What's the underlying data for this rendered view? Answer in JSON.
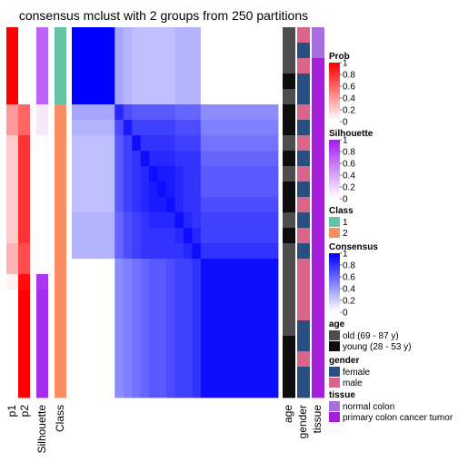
{
  "chart_data": {
    "type": "heatmap",
    "title": "consensus mclust with 2 groups from 250 partitions",
    "n_samples": 24,
    "consensus_row_blocks": [
      5,
      1,
      1,
      1,
      1,
      1,
      1,
      1,
      1,
      1,
      1,
      9
    ],
    "consensus_matrix": [
      [
        1.0,
        0.35,
        0.3,
        0.25,
        0.25,
        0.25,
        0.25,
        0.25,
        0.3,
        0.3,
        0.3,
        0.0
      ],
      [
        0.35,
        0.85,
        0.7,
        0.65,
        0.65,
        0.65,
        0.65,
        0.65,
        0.6,
        0.6,
        0.6,
        0.45
      ],
      [
        0.3,
        0.7,
        0.9,
        0.75,
        0.75,
        0.75,
        0.75,
        0.75,
        0.7,
        0.7,
        0.7,
        0.5
      ],
      [
        0.25,
        0.65,
        0.75,
        0.95,
        0.8,
        0.8,
        0.8,
        0.8,
        0.75,
        0.75,
        0.75,
        0.55
      ],
      [
        0.25,
        0.65,
        0.75,
        0.8,
        0.95,
        0.85,
        0.85,
        0.85,
        0.8,
        0.8,
        0.8,
        0.6
      ],
      [
        0.25,
        0.65,
        0.75,
        0.8,
        0.85,
        0.95,
        0.9,
        0.9,
        0.85,
        0.8,
        0.8,
        0.65
      ],
      [
        0.25,
        0.65,
        0.75,
        0.8,
        0.85,
        0.9,
        0.95,
        0.9,
        0.85,
        0.8,
        0.8,
        0.65
      ],
      [
        0.25,
        0.65,
        0.75,
        0.8,
        0.85,
        0.9,
        0.9,
        0.95,
        0.85,
        0.8,
        0.8,
        0.7
      ],
      [
        0.3,
        0.6,
        0.7,
        0.75,
        0.8,
        0.85,
        0.85,
        0.85,
        0.95,
        0.85,
        0.8,
        0.75
      ],
      [
        0.3,
        0.6,
        0.7,
        0.75,
        0.8,
        0.8,
        0.8,
        0.8,
        0.85,
        0.95,
        0.85,
        0.75
      ],
      [
        0.3,
        0.6,
        0.7,
        0.75,
        0.8,
        0.8,
        0.8,
        0.8,
        0.8,
        0.85,
        0.95,
        0.8
      ],
      [
        0.0,
        0.45,
        0.5,
        0.55,
        0.6,
        0.65,
        0.65,
        0.7,
        0.75,
        0.75,
        0.8,
        0.95
      ]
    ],
    "p1": [
      1.0,
      1.0,
      1.0,
      1.0,
      1.0,
      0.4,
      0.4,
      0.2,
      0.2,
      0.2,
      0.2,
      0.2,
      0.2,
      0.2,
      0.3,
      0.3,
      0.05,
      0.0,
      0.0,
      0.0,
      0.0,
      0.0,
      0.0,
      0.0
    ],
    "p2": [
      0.0,
      0.0,
      0.0,
      0.0,
      0.0,
      0.6,
      0.6,
      0.8,
      0.8,
      0.8,
      0.8,
      0.8,
      0.8,
      0.8,
      0.7,
      0.7,
      0.95,
      1.0,
      1.0,
      1.0,
      1.0,
      1.0,
      1.0,
      1.0
    ],
    "silhouette": [
      0.7,
      0.7,
      0.7,
      0.7,
      0.7,
      0.1,
      0.1,
      0.0,
      0.0,
      0.0,
      0.0,
      0.0,
      0.0,
      0.0,
      0.0,
      0.0,
      0.9,
      0.95,
      0.95,
      0.95,
      0.95,
      0.95,
      0.95,
      0.95
    ],
    "class": [
      1,
      1,
      1,
      1,
      1,
      2,
      2,
      2,
      2,
      2,
      2,
      2,
      2,
      2,
      2,
      2,
      2,
      2,
      2,
      2,
      2,
      2,
      2,
      2
    ],
    "age": [
      "old",
      "old",
      "old",
      "young",
      "old",
      "young",
      "young",
      "old",
      "young",
      "old",
      "young",
      "young",
      "old",
      "young",
      "old",
      "old",
      "old",
      "old",
      "old",
      "old",
      "young",
      "young",
      "young",
      "young"
    ],
    "gender": [
      "male",
      "female",
      "male",
      "female",
      "female",
      "male",
      "female",
      "male",
      "female",
      "male",
      "female",
      "male",
      "female",
      "male",
      "female",
      "male",
      "male",
      "male",
      "male",
      "female",
      "female",
      "male",
      "female",
      "female"
    ],
    "tissue": [
      "normal",
      "normal",
      "cancer",
      "cancer",
      "cancer",
      "cancer",
      "cancer",
      "cancer",
      "cancer",
      "cancer",
      "cancer",
      "cancer",
      "cancer",
      "cancer",
      "cancer",
      "cancer",
      "cancer",
      "cancer",
      "cancer",
      "cancer",
      "cancer",
      "cancer",
      "cancer",
      "cancer"
    ],
    "column_labels": [
      "p1",
      "p2",
      "Silhouette",
      "Class",
      "age",
      "gender",
      "tissue"
    ],
    "legends": [
      {
        "id": "prob",
        "title": "Prob",
        "type": "continuous",
        "ticks": [
          "1",
          "0.8",
          "0.6",
          "0.4",
          "0.2",
          "0"
        ],
        "low": "#ffffff",
        "high": "#ff0000"
      },
      {
        "id": "silhouette",
        "title": "Silhouette",
        "type": "continuous",
        "ticks": [
          "1",
          "0.8",
          "0.6",
          "0.4",
          "0.2",
          "0"
        ],
        "low": "#ffffff",
        "high": "#a020f0"
      },
      {
        "id": "class",
        "title": "Class",
        "type": "discrete",
        "entries": [
          {
            "key": 1,
            "label": "1",
            "color": "#66c2a5"
          },
          {
            "key": 2,
            "label": "2",
            "color": "#fc8d62"
          }
        ]
      },
      {
        "id": "consensus",
        "title": "Consensus",
        "type": "continuous",
        "ticks": [
          "1",
          "0.8",
          "0.6",
          "0.4",
          "0.2",
          "0"
        ],
        "low": "#ffffff",
        "high": "#0000ff"
      },
      {
        "id": "age",
        "title": "age",
        "type": "discrete",
        "entries": [
          {
            "key": "old",
            "label": "old (69 - 87 y)",
            "color": "#4d4d4d"
          },
          {
            "key": "young",
            "label": "young (28 - 53 y)",
            "color": "#0d0d0d"
          }
        ]
      },
      {
        "id": "gender",
        "title": "gender",
        "type": "discrete",
        "entries": [
          {
            "key": "female",
            "label": "female",
            "color": "#2b4e80"
          },
          {
            "key": "male",
            "label": "male",
            "color": "#d9668a"
          }
        ]
      },
      {
        "id": "tissue",
        "title": "tissue",
        "type": "discrete",
        "entries": [
          {
            "key": "normal",
            "label": "normal colon",
            "color": "#a66ee0"
          },
          {
            "key": "cancer",
            "label": "primary colon cancer tumor",
            "color": "#a51ed8"
          }
        ]
      }
    ]
  }
}
